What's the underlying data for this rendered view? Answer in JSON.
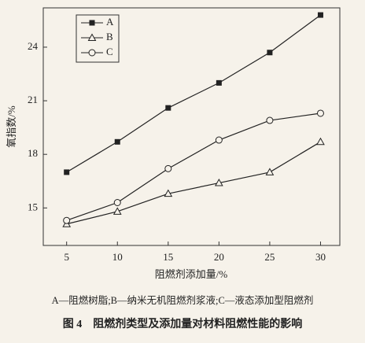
{
  "chart_data": {
    "type": "line",
    "xlabel": "阻燃剂添加量/%",
    "ylabel": "氧指数/%",
    "caption": "A—阻燃树脂;B—纳米无机阻燃剂浆液;C—液态添加型阻燃剂",
    "title": "图 4    阻燃剂类型及添加量对材料阻燃性能的影响",
    "x": [
      5,
      10,
      15,
      20,
      25,
      30
    ],
    "series": [
      {
        "name": "A",
        "color": "#222222",
        "marker": "square",
        "values": [
          17.0,
          18.7,
          20.6,
          22.0,
          23.7,
          25.8
        ]
      },
      {
        "name": "B",
        "color": "#222222",
        "marker": "triangle",
        "values": [
          14.1,
          14.8,
          15.8,
          16.4,
          17.0,
          18.7
        ]
      },
      {
        "name": "C",
        "color": "#222222",
        "marker": "circle",
        "values": [
          14.3,
          15.3,
          17.2,
          18.8,
          19.9,
          20.3
        ]
      }
    ],
    "xlim": [
      2.7,
      31.9
    ],
    "ylim": [
      12.9,
      26.2
    ],
    "xticks": [
      5,
      10,
      15,
      20,
      25,
      30
    ],
    "yticks": [
      15,
      18,
      21,
      24
    ],
    "legend": "upper left"
  }
}
